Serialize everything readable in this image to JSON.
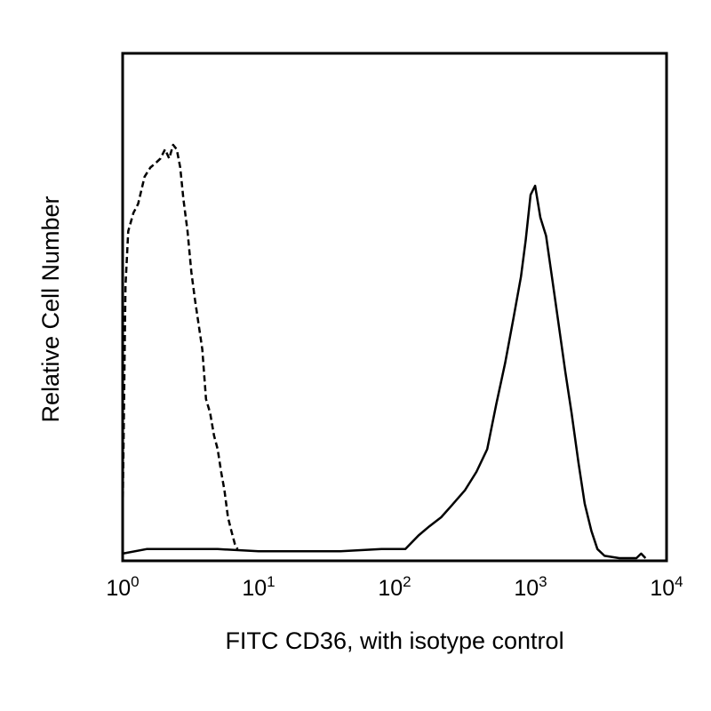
{
  "chart_data": {
    "type": "line",
    "title": "",
    "xlabel": "FITC CD36, with isotype control",
    "ylabel": "Relative Cell Number",
    "x_scale": "log",
    "xlim": [
      1,
      10000
    ],
    "ylim": [
      0,
      100
    ],
    "grid": false,
    "legend": "none",
    "x_ticks": [
      {
        "base": "10",
        "exp": "0",
        "value": 1
      },
      {
        "base": "10",
        "exp": "1",
        "value": 10
      },
      {
        "base": "10",
        "exp": "2",
        "value": 100
      },
      {
        "base": "10",
        "exp": "3",
        "value": 1000
      },
      {
        "base": "10",
        "exp": "4",
        "value": 10000
      }
    ],
    "series": [
      {
        "style": "dashed",
        "color": "#000000",
        "x": [
          1.0,
          1.05,
          1.1,
          1.2,
          1.3,
          1.45,
          1.6,
          1.75,
          1.9,
          2.05,
          2.2,
          2.35,
          2.5,
          2.65,
          2.8,
          3.0,
          3.2,
          3.4,
          3.6,
          3.85,
          4.1,
          4.4,
          4.7,
          5.0,
          5.3,
          5.6,
          5.95,
          6.3,
          6.7,
          7.0
        ],
        "y": [
          9,
          60,
          72,
          76,
          78,
          84,
          86,
          87,
          88,
          90,
          88,
          91,
          90,
          86,
          79,
          72,
          63,
          57,
          52,
          46,
          35,
          32,
          27,
          24,
          19,
          15,
          9,
          6,
          3,
          2
        ]
      },
      {
        "style": "solid",
        "color": "#000000",
        "x": [
          1.0,
          1.5,
          2.0,
          3.0,
          5.0,
          10,
          20,
          40,
          80,
          120,
          150,
          180,
          220,
          270,
          330,
          400,
          480,
          560,
          650,
          750,
          850,
          920,
          1000,
          1080,
          1180,
          1300,
          1450,
          1600,
          1800,
          2000,
          2250,
          2500,
          2800,
          3100,
          3500,
          4500,
          6000,
          6500,
          7000
        ],
        "y": [
          1,
          2,
          2,
          2,
          2,
          1.5,
          1.5,
          1.5,
          2,
          2,
          5,
          7,
          9,
          12,
          15,
          19,
          24,
          34,
          43,
          53,
          62,
          70,
          80,
          82,
          75,
          71,
          61,
          52,
          41,
          32,
          21,
          12,
          6,
          2,
          0.5,
          0,
          0,
          1,
          0
        ]
      }
    ]
  }
}
